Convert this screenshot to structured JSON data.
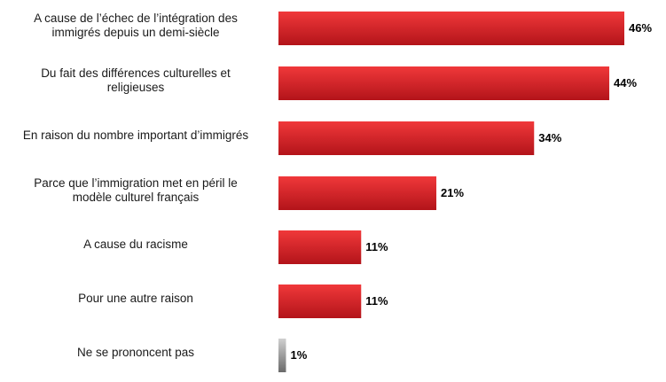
{
  "chart_data": {
    "type": "bar",
    "orientation": "horizontal",
    "categories": [
      "A cause de l’échec de l’intégration des immigrés depuis un demi-siècle",
      "Du fait des différences culturelles et religieuses",
      "En raison du nombre important d’immigrés",
      "Parce que l’immigration met en péril le modèle culturel français",
      "A cause du racisme",
      "Pour une autre raison",
      "Ne se prononcent pas"
    ],
    "category_lines": [
      [
        "A cause de l’échec de l’intégration des",
        "immigrés depuis un demi-siècle"
      ],
      [
        "Du fait des différences culturelles et",
        "religieuses"
      ],
      [
        "En raison du nombre important d’immigrés"
      ],
      [
        "Parce que l’immigration met en péril le",
        "modèle culturel français"
      ],
      [
        "A cause du racisme"
      ],
      [
        "Pour une autre raison"
      ],
      [
        "Ne se prononcent pas"
      ]
    ],
    "values": [
      46,
      44,
      34,
      21,
      11,
      11,
      1
    ],
    "value_labels": [
      "46%",
      "44%",
      "34%",
      "21%",
      "11%",
      "11%",
      "1%"
    ],
    "colors": {
      "main_light": "#f0383a",
      "main_dark": "#b3141a",
      "other_light": "#d0d0d0",
      "other_dark": "#6a6a6a"
    },
    "title": "",
    "xlabel": "",
    "ylabel": "",
    "xlim": [
      0,
      46
    ],
    "grid": false,
    "legend": "none"
  }
}
